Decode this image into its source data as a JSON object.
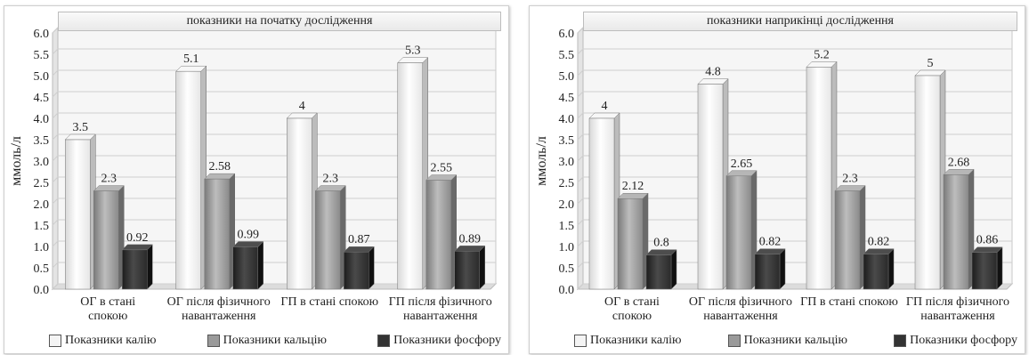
{
  "chart_data": [
    {
      "type": "bar",
      "title": "показники на початку дослідження",
      "ylabel": "ммоль/л",
      "ylim": [
        0,
        6
      ],
      "yticks": [
        "0.0",
        "0.5",
        "1.0",
        "1.5",
        "2.0",
        "2.5",
        "3.0",
        "3.5",
        "4.0",
        "4.5",
        "5.0",
        "5.5",
        "6.0"
      ],
      "categories": [
        [
          "ОГ в стані",
          "спокою"
        ],
        [
          "ОГ після фізичного",
          "навантаження"
        ],
        [
          "ГП в стані спокою"
        ],
        [
          "ГП після фізичного",
          "навантаження"
        ]
      ],
      "series": [
        {
          "name": "Показники калію",
          "values": [
            3.5,
            5.1,
            4,
            5.3
          ],
          "labels": [
            "3.5",
            "5.1",
            "4",
            "5.3"
          ]
        },
        {
          "name": "Показники кальцію",
          "values": [
            2.3,
            2.58,
            2.3,
            2.55
          ],
          "labels": [
            "2.3",
            "2.58",
            "2.3",
            "2.55"
          ]
        },
        {
          "name": "Показники фосфору",
          "values": [
            0.92,
            0.99,
            0.87,
            0.89
          ],
          "labels": [
            "0.92",
            "0.99",
            "0.87",
            "0.89"
          ]
        }
      ],
      "grid": true,
      "legend_position": "bottom"
    },
    {
      "type": "bar",
      "title": "показники наприкінці дослідження",
      "ylabel": "ммоль/л",
      "ylim": [
        0,
        6
      ],
      "yticks": [
        "0.0",
        "0.5",
        "1.0",
        "1.5",
        "2.0",
        "2.5",
        "3.0",
        "3.5",
        "4.0",
        "4.5",
        "5.0",
        "5.5",
        "6.0"
      ],
      "categories": [
        [
          "ОГ в стані",
          "спокою"
        ],
        [
          "ОГ після фізичного",
          "навантаження"
        ],
        [
          "ГП в стані спокою"
        ],
        [
          "ГП після фізичного",
          "навантаження"
        ]
      ],
      "series": [
        {
          "name": "Показники калію",
          "values": [
            4,
            4.8,
            5.2,
            5
          ],
          "labels": [
            "4",
            "4.8",
            "5.2",
            "5"
          ]
        },
        {
          "name": "Показники кальцію",
          "values": [
            2.12,
            2.65,
            2.3,
            2.68
          ],
          "labels": [
            "2.12",
            "2.65",
            "2.3",
            "2.68"
          ]
        },
        {
          "name": "Показники фосфору",
          "values": [
            0.8,
            0.82,
            0.82,
            0.86
          ],
          "labels": [
            "0.8",
            "0.82",
            "0.82",
            "0.86"
          ]
        }
      ],
      "grid": true,
      "legend_position": "bottom"
    }
  ],
  "colors": {
    "Показники калію": "#f2f2f2",
    "Показники кальцію": "#9a9a9a",
    "Показники фосфору": "#333333"
  }
}
